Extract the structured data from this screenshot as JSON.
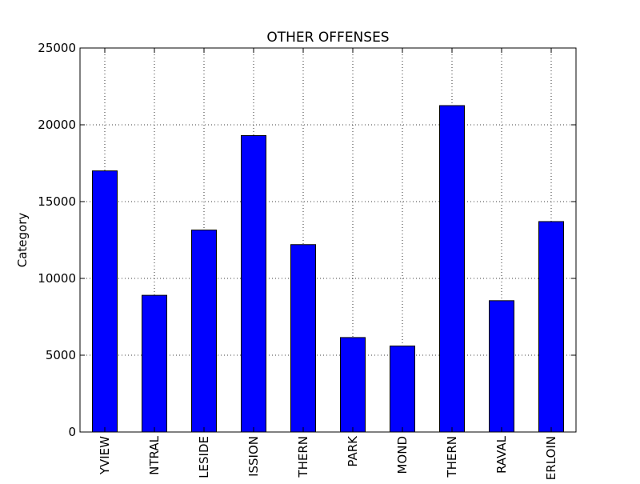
{
  "chart_data": {
    "type": "bar",
    "title": "OTHER OFFENSES",
    "xlabel": "",
    "ylabel": "Category",
    "categories": [
      "BAYVIEW",
      "CENTRAL",
      "INGLESIDE",
      "MISSION",
      "NORTHERN",
      "PARK",
      "RICHMOND",
      "SOUTHERN",
      "TARAVAL",
      "TENDERLOIN"
    ],
    "category_labels_visible": [
      "YVIEW",
      "NTRAL",
      "LESIDE",
      "ISSION",
      "THERN",
      "PARK",
      "MOND",
      "THERN",
      "RAVAL",
      "ERLOIN"
    ],
    "values": [
      17000,
      8900,
      13150,
      19300,
      12200,
      6150,
      5600,
      21250,
      8550,
      13700
    ],
    "ylim": [
      0,
      25000
    ],
    "yticks": [
      0,
      5000,
      10000,
      15000,
      20000,
      25000
    ],
    "ytick_labels": [
      "0",
      "5000",
      "10000",
      "15000",
      "20000",
      "25000"
    ],
    "grid": true,
    "bar_color": "#0000ff",
    "edge_color": "#000000"
  }
}
